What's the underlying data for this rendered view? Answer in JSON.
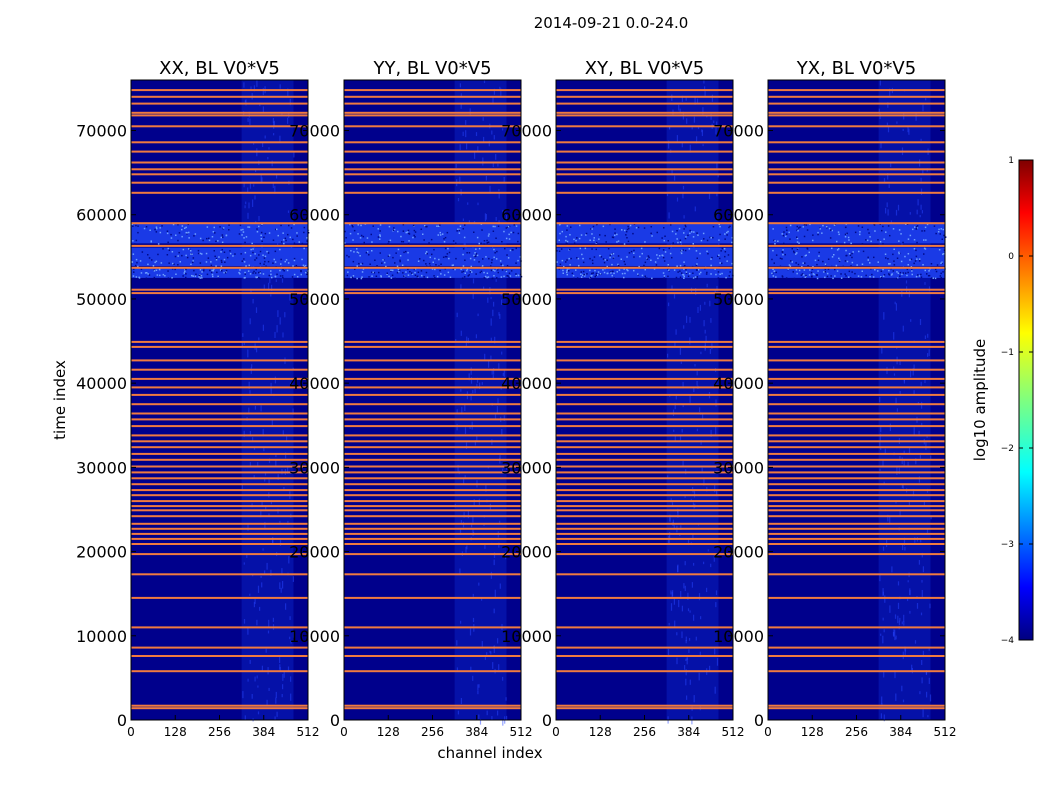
{
  "figure_title": "2014-09-21 0.0-24.0",
  "chart_data": {
    "type": "heatmap",
    "xlabel": "channel index",
    "ylabel": "time index",
    "xlim": [
      0,
      512
    ],
    "ylim": [
      0,
      76000
    ],
    "xticks": [
      0,
      128,
      256,
      384,
      512
    ],
    "xtick_labels": [
      "0",
      "128",
      "256",
      "384",
      "512"
    ],
    "yticks": [
      0,
      10000,
      20000,
      30000,
      40000,
      50000,
      60000,
      70000
    ],
    "ytick_labels": [
      "0",
      "10000",
      "20000",
      "30000",
      "40000",
      "50000",
      "60000",
      "70000"
    ],
    "panels": [
      {
        "title": "XX, BL V0*V5"
      },
      {
        "title": "YY, BL V0*V5"
      },
      {
        "title": "XY, BL V0*V5"
      },
      {
        "title": "YX, BL V0*V5"
      }
    ],
    "flagged_rows": [
      1400,
      1700,
      5800,
      7600,
      8600,
      11000,
      14500,
      17300,
      19700,
      20900,
      21500,
      22100,
      22700,
      23300,
      24200,
      24900,
      25400,
      26000,
      26700,
      27300,
      28000,
      28700,
      29400,
      30100,
      30900,
      31600,
      32400,
      33100,
      33800,
      34900,
      35700,
      36400,
      37500,
      38600,
      39500,
      40500,
      41600,
      42700,
      44300,
      44900,
      50700,
      51100,
      53700,
      56300,
      59000,
      62600,
      63800,
      64800,
      65400,
      66200,
      67500,
      68600,
      70500,
      71800,
      72100,
      73200,
      74000,
      74800
    ],
    "noise_bands": [
      [
        52500,
        53700
      ],
      [
        53900,
        56100
      ],
      [
        56600,
        59000
      ]
    ],
    "rfi_column_range": [
      320,
      470
    ],
    "colorbar": {
      "label": "log10 amplitude",
      "min": -4,
      "max": 1,
      "ticks": [
        1,
        0,
        -1,
        -2,
        -3,
        -4
      ],
      "tick_labels": [
        "1",
        "0",
        "−1",
        "−2",
        "−3",
        "−4"
      ],
      "colormap": "jet"
    },
    "colors": {
      "background": "#00008c",
      "noise": "#1a3ae6",
      "flag": "#f07a40",
      "frame": "#000000"
    }
  }
}
